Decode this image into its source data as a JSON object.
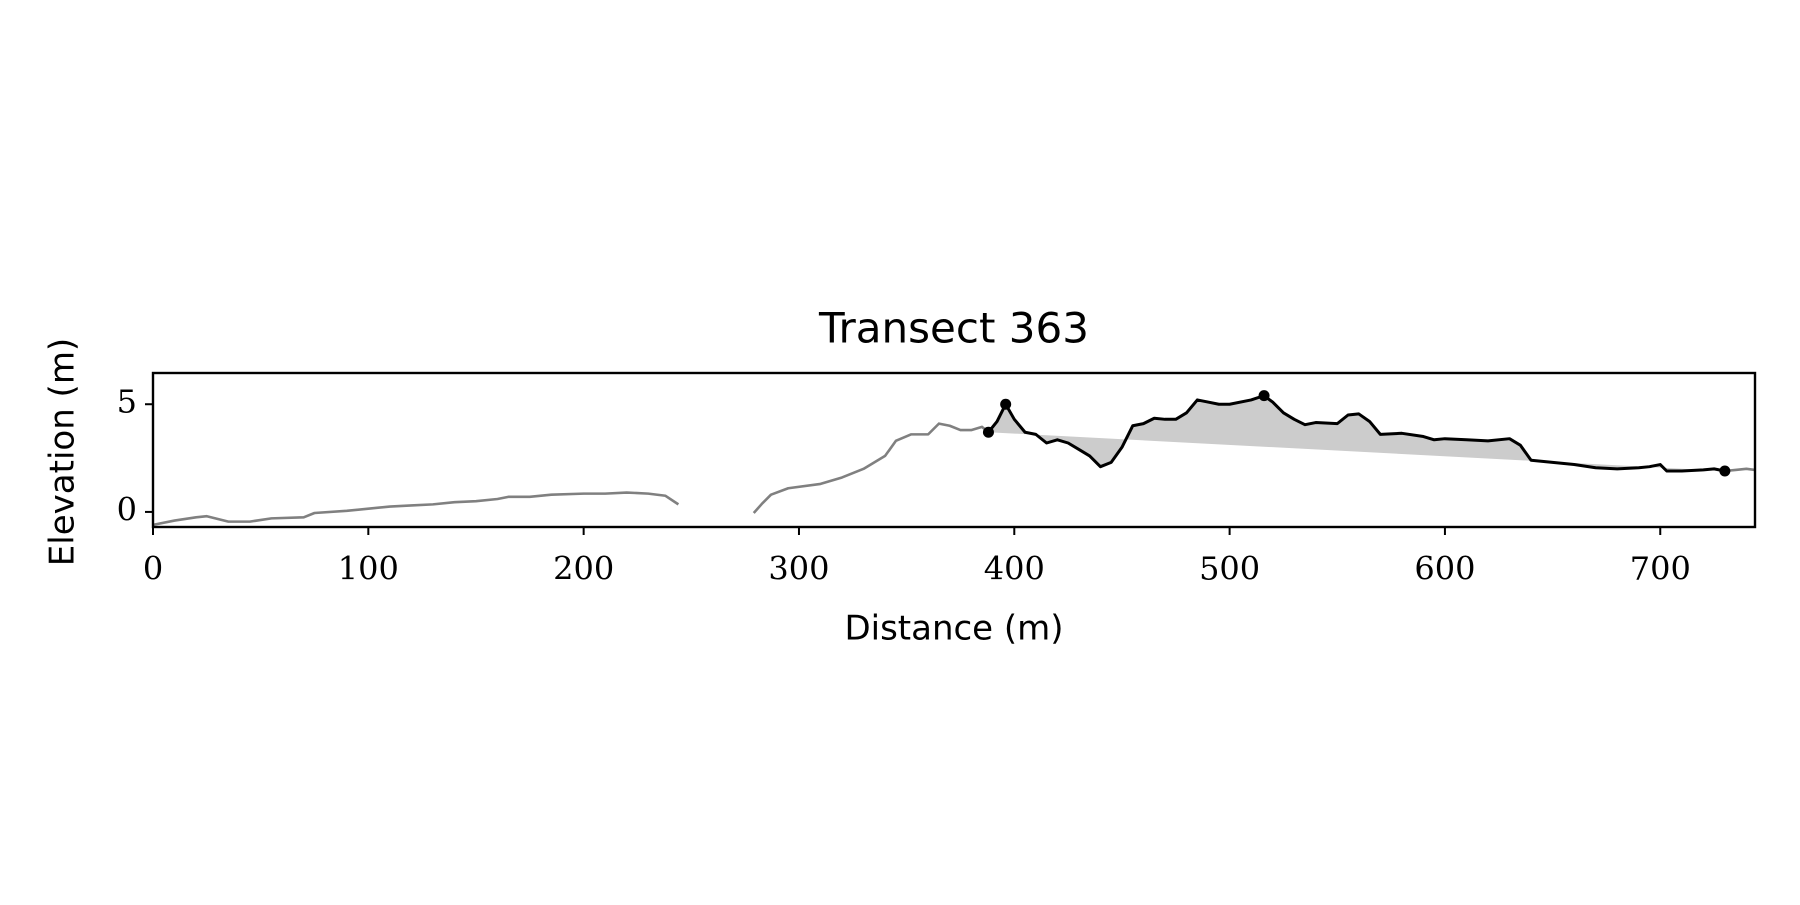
{
  "chart_data": {
    "type": "line",
    "title": "Transect 363",
    "x_label": "Distance (m)",
    "y_label": "Elevation (m)",
    "xlim": [
      0,
      744
    ],
    "ylim": [
      -0.7,
      6.45
    ],
    "xticks": [
      0,
      100,
      200,
      300,
      400,
      500,
      600,
      700
    ],
    "yticks": [
      0,
      5
    ],
    "fill_color": "#cccccc",
    "series": [
      {
        "color": "#808080",
        "x": [
          0,
          10,
          20,
          25,
          35,
          45,
          55,
          70,
          75,
          90,
          100,
          110,
          120,
          130,
          140,
          150,
          160,
          165,
          175,
          185,
          200,
          210,
          220,
          230,
          238,
          244,
          260,
          279,
          283,
          287,
          295,
          310,
          320,
          330,
          340,
          345,
          352,
          360,
          365,
          370,
          375,
          380,
          385,
          388,
          560,
          730,
          735,
          740,
          744
        ],
        "values": [
          -0.6,
          -0.4,
          -0.25,
          -0.2,
          -0.45,
          -0.45,
          -0.3,
          -0.25,
          -0.05,
          0.05,
          0.15,
          0.25,
          0.3,
          0.35,
          0.45,
          0.5,
          0.6,
          0.7,
          0.7,
          0.8,
          0.85,
          0.85,
          0.9,
          0.85,
          0.75,
          0.35,
          null,
          -0.05,
          0.4,
          0.8,
          1.1,
          1.3,
          1.6,
          2.0,
          2.6,
          3.3,
          3.6,
          3.6,
          4.1,
          4.0,
          3.8,
          3.8,
          3.95,
          3.7,
          null,
          1.9,
          1.95,
          2.0,
          1.95
        ]
      },
      {
        "color": "#000000",
        "x": [
          388,
          392,
          396,
          400,
          405,
          410,
          415,
          420,
          425,
          430,
          435,
          440,
          445,
          450,
          455,
          460,
          465,
          470,
          475,
          480,
          485,
          490,
          495,
          500,
          510,
          516,
          520,
          525,
          530,
          535,
          540,
          550,
          555,
          560,
          565,
          570,
          580,
          590,
          595,
          600,
          610,
          620,
          630,
          635,
          640,
          650,
          660,
          670,
          680,
          690,
          695,
          700,
          703,
          710,
          720,
          725,
          730
        ],
        "values": [
          3.7,
          4.2,
          5.0,
          4.3,
          3.7,
          3.6,
          3.2,
          3.35,
          3.2,
          2.9,
          2.6,
          2.1,
          2.3,
          3.0,
          4.0,
          4.1,
          4.35,
          4.3,
          4.3,
          4.6,
          5.2,
          5.1,
          5.0,
          5.0,
          5.2,
          5.4,
          5.1,
          4.6,
          4.3,
          4.05,
          4.15,
          4.1,
          4.5,
          4.55,
          4.2,
          3.6,
          3.65,
          3.5,
          3.35,
          3.4,
          3.35,
          3.3,
          3.4,
          3.1,
          2.4,
          2.3,
          2.2,
          2.05,
          2.0,
          2.05,
          2.1,
          2.2,
          1.9,
          1.9,
          1.95,
          2.0,
          1.9
        ]
      }
    ],
    "markers": {
      "color": "#000000",
      "x": [
        388,
        396,
        516,
        730
      ],
      "y": [
        3.7,
        5.0,
        5.4,
        1.9
      ]
    }
  }
}
